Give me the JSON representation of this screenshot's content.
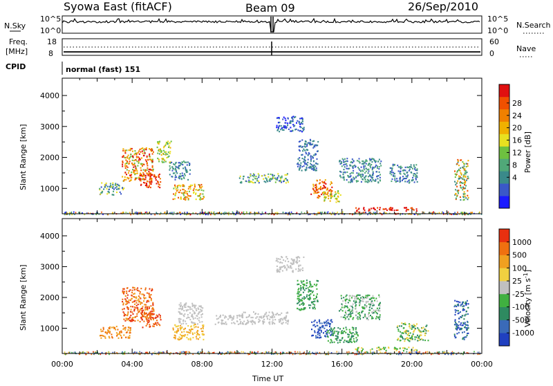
{
  "header": {
    "title": "Syowa East (fitACF)",
    "beam": "Beam 09",
    "date": "26/Sep/2010"
  },
  "top_panels": {
    "nsky_label": "N.Sky",
    "nsearch_label": "N.Search",
    "freq_label": "Freq.",
    "freq_unit": "[MHz]",
    "nave_label": "Nave",
    "cpid_label": "CPID",
    "cpid_value": "normal (fast) 151",
    "noise_ticks": [
      "10^5",
      "10^0"
    ],
    "freq_ticks": [
      "18",
      "8"
    ],
    "nave_ticks": [
      "60",
      "0"
    ]
  },
  "chart_data": [
    {
      "type": "heatmap",
      "name": "power",
      "ylabel": "Slant Range [km]",
      "ylim": [
        180,
        4560
      ],
      "y_ticks": [
        1000,
        2000,
        3000,
        4000
      ],
      "x_ticks": [
        "00:00",
        "04:00",
        "08:00",
        "12:00",
        "16:00",
        "20:00",
        "00:00"
      ],
      "xlim_hours": [
        0,
        24
      ],
      "colorbar": {
        "label": "Power [dB]",
        "ticks": [
          "28",
          "24",
          "20",
          "16",
          "12",
          "8",
          "4"
        ],
        "colors": [
          "#1a1aff",
          "#3a58c8",
          "#3a8a8a",
          "#50a878",
          "#6ec040",
          "#e8e020",
          "#f0b000",
          "#f08000",
          "#f05000",
          "#e01010"
        ]
      }
    },
    {
      "type": "heatmap",
      "name": "velocity",
      "ylabel": "Slant Range [km]",
      "ylim": [
        180,
        4560
      ],
      "y_ticks": [
        1000,
        2000,
        3000,
        4000
      ],
      "x_ticks": [
        "00:00",
        "04:00",
        "08:00",
        "12:00",
        "16:00",
        "20:00",
        "00:00"
      ],
      "xlim_hours": [
        0,
        24
      ],
      "xlabel": "Time UT",
      "colorbar": {
        "label": "Velocity [m s",
        "label_sup": "-1",
        "label_end": "]",
        "ticks": [
          "1000",
          "500",
          "100",
          "25",
          "-25",
          "-100",
          "-500",
          "-1000"
        ],
        "colors": [
          "#2040c0",
          "#3a6ab8",
          "#2e8a60",
          "#40b040",
          "#c0c0c0",
          "#f0d040",
          "#f0a020",
          "#f07010",
          "#e83010"
        ]
      }
    }
  ]
}
